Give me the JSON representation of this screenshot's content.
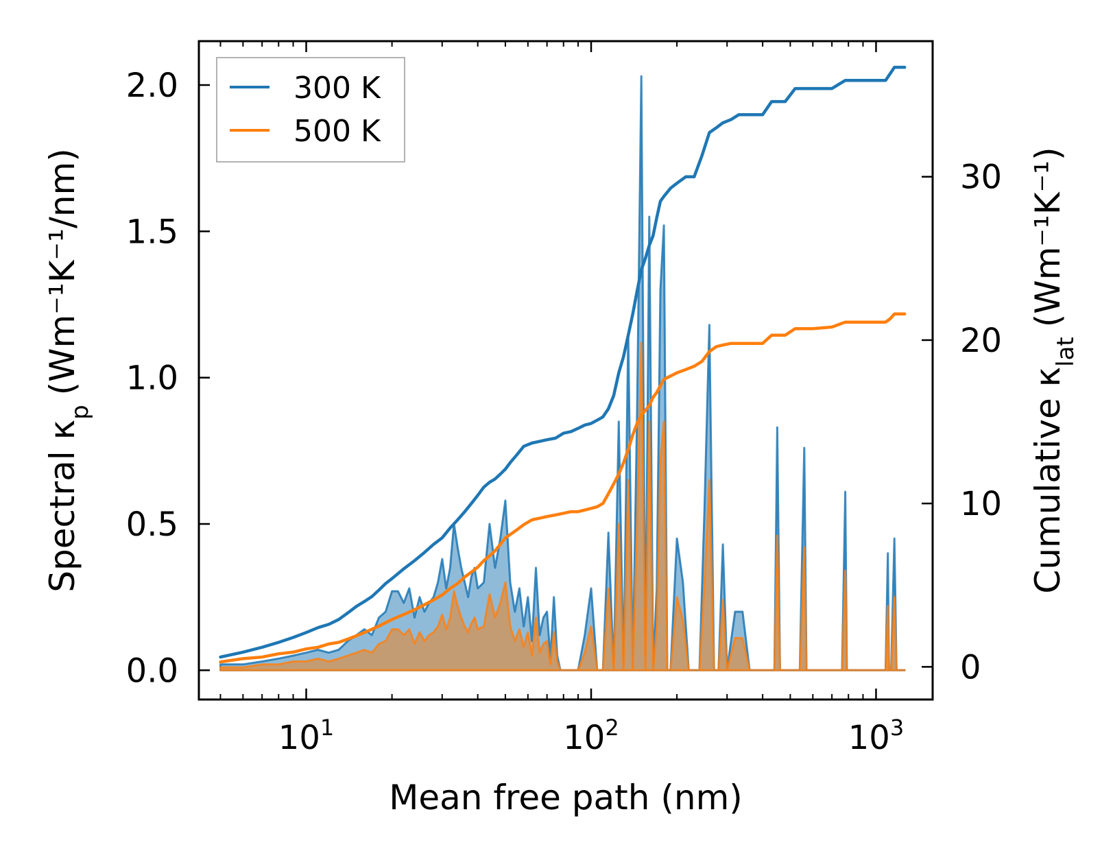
{
  "chart_data": {
    "type": "area",
    "xlabel": "Mean free path (nm)",
    "ylabel_left_main": "Spectral κ",
    "ylabel_left_sub": "p",
    "ylabel_left_units": "(Wm⁻¹K⁻¹/nm)",
    "ylabel_right_main": "Cumulative κ",
    "ylabel_right_sub": "lat",
    "ylabel_right_units": "(Wm⁻¹K⁻¹)",
    "x_scale": "log",
    "xlim": [
      4.2,
      1580
    ],
    "ylim_left": [
      -0.1,
      2.15
    ],
    "ylim_right": [
      -2.0,
      38.3
    ],
    "x_ticks": [
      {
        "base": "10",
        "exp": "1",
        "value": 10
      },
      {
        "base": "10",
        "exp": "2",
        "value": 100
      },
      {
        "base": "10",
        "exp": "3",
        "value": 1000
      }
    ],
    "y_ticks_left": [
      {
        "label": "0.0",
        "value": 0
      },
      {
        "label": "0.5",
        "value": 0.5
      },
      {
        "label": "1.0",
        "value": 1.0
      },
      {
        "label": "1.5",
        "value": 1.5
      },
      {
        "label": "2.0",
        "value": 2.0
      }
    ],
    "y_ticks_right": [
      {
        "label": "0",
        "value": 0
      },
      {
        "label": "10",
        "value": 10
      },
      {
        "label": "20",
        "value": 20
      },
      {
        "label": "30",
        "value": 30
      }
    ],
    "legend": {
      "placement": "top-left",
      "entries": [
        {
          "label": "300 K",
          "color": "#1f77b4"
        },
        {
          "label": "500 K",
          "color": "#ff7f0e"
        }
      ]
    },
    "series": [
      {
        "name": "300 K",
        "color": "#1f77b4",
        "spectral": {
          "x": [
            5,
            6,
            7,
            8,
            9,
            10,
            11,
            12,
            13,
            14,
            15,
            16,
            17,
            18,
            19,
            20,
            21,
            22,
            23,
            24,
            25,
            26,
            27,
            28,
            29,
            30,
            31,
            32,
            33,
            34,
            35,
            36,
            37,
            38,
            39,
            40,
            42,
            44,
            46,
            48,
            50,
            52,
            54,
            56,
            58,
            60,
            62,
            64,
            66,
            68,
            70,
            72,
            74,
            76,
            78,
            80,
            85,
            90,
            95,
            100,
            105,
            110,
            115,
            120,
            125,
            130,
            135,
            140,
            145,
            150,
            155,
            160,
            165,
            170,
            175,
            180,
            185,
            190,
            200,
            210,
            220,
            230,
            240,
            250,
            260,
            270,
            280,
            290,
            300,
            320,
            340,
            360,
            400,
            420,
            440,
            450,
            460,
            480,
            540,
            560,
            570,
            580,
            600,
            760,
            780,
            790,
            800,
            820,
            1080,
            1100,
            1110,
            1130,
            1160,
            1180,
            1200,
            1220,
            1260
          ],
          "y": [
            0.02,
            0.02,
            0.03,
            0.04,
            0.05,
            0.06,
            0.07,
            0.06,
            0.07,
            0.1,
            0.12,
            0.14,
            0.12,
            0.18,
            0.2,
            0.27,
            0.27,
            0.23,
            0.28,
            0.18,
            0.25,
            0.2,
            0.23,
            0.25,
            0.3,
            0.38,
            0.28,
            0.35,
            0.5,
            0.42,
            0.35,
            0.3,
            0.25,
            0.32,
            0.35,
            0.28,
            0.3,
            0.5,
            0.35,
            0.45,
            0.58,
            0.3,
            0.2,
            0.28,
            0.15,
            0.25,
            0.1,
            0.35,
            0.12,
            0.18,
            0.2,
            0.04,
            0.25,
            0.05,
            0.0,
            0.0,
            0.0,
            0.0,
            0.12,
            0.28,
            0.0,
            0.0,
            0.47,
            0.0,
            0.85,
            0.0,
            1.15,
            0.0,
            0.88,
            2.03,
            0.0,
            1.55,
            0.0,
            0.28,
            1.3,
            1.52,
            0.0,
            0.0,
            0.45,
            0.3,
            0.0,
            0.0,
            0.0,
            0.55,
            1.18,
            0.0,
            0.0,
            0.43,
            0.0,
            0.2,
            0.2,
            0.0,
            0.0,
            0.0,
            0.0,
            0.83,
            0.0,
            0.0,
            0.0,
            0.76,
            0.0,
            0.0,
            0.0,
            0.0,
            0.61,
            0.0,
            0.0,
            0.0,
            0.0,
            0.4,
            0.0,
            0.0,
            0.45,
            0.0,
            0.0,
            0.0,
            0.0
          ]
        },
        "cumulative": {
          "x": [
            5,
            6,
            7,
            8,
            9,
            10,
            11,
            12,
            13,
            14,
            15,
            16,
            17,
            18,
            19,
            20,
            22,
            24,
            26,
            28,
            30,
            32,
            34,
            36,
            38,
            40,
            42,
            44,
            46,
            48,
            50,
            52,
            55,
            58,
            62,
            66,
            70,
            75,
            80,
            85,
            90,
            95,
            100,
            105,
            110,
            115,
            120,
            125,
            130,
            135,
            140,
            145,
            150,
            155,
            160,
            165,
            170,
            175,
            180,
            190,
            200,
            215,
            230,
            245,
            260,
            275,
            290,
            310,
            330,
            360,
            400,
            430,
            450,
            480,
            520,
            560,
            600,
            700,
            780,
            820,
            1000,
            1080,
            1120,
            1160,
            1200,
            1260
          ],
          "y": [
            0.6,
            0.9,
            1.2,
            1.5,
            1.8,
            2.1,
            2.4,
            2.6,
            2.9,
            3.3,
            3.7,
            4.0,
            4.3,
            4.7,
            5.1,
            5.4,
            6.0,
            6.5,
            7.0,
            7.5,
            7.9,
            8.5,
            9.0,
            9.5,
            10.0,
            10.5,
            11.0,
            11.3,
            11.5,
            11.8,
            12.1,
            12.5,
            13.0,
            13.5,
            13.7,
            13.8,
            13.9,
            14.0,
            14.3,
            14.4,
            14.6,
            14.8,
            14.9,
            15.1,
            15.3,
            15.8,
            16.6,
            18.0,
            19.0,
            20.3,
            21.6,
            23.0,
            24.3,
            25.0,
            25.8,
            26.4,
            27.5,
            28.5,
            28.8,
            29.3,
            29.6,
            30.0,
            30.0,
            31.3,
            32.7,
            33.0,
            33.3,
            33.5,
            33.8,
            33.8,
            33.8,
            34.6,
            34.6,
            34.6,
            35.4,
            35.4,
            35.4,
            35.4,
            35.9,
            35.9,
            35.9,
            35.9,
            36.3,
            36.7,
            36.7,
            36.7
          ]
        }
      },
      {
        "name": "500 K",
        "color": "#ff7f0e",
        "spectral": {
          "x": [
            5,
            6,
            7,
            8,
            9,
            10,
            11,
            12,
            13,
            14,
            15,
            16,
            17,
            18,
            19,
            20,
            21,
            22,
            23,
            24,
            25,
            26,
            27,
            28,
            29,
            30,
            31,
            32,
            33,
            34,
            35,
            36,
            37,
            38,
            39,
            40,
            42,
            44,
            46,
            48,
            50,
            52,
            54,
            56,
            58,
            60,
            62,
            64,
            66,
            68,
            70,
            72,
            74,
            76,
            78,
            80,
            85,
            90,
            95,
            100,
            105,
            110,
            115,
            120,
            125,
            130,
            135,
            140,
            145,
            150,
            155,
            160,
            165,
            170,
            175,
            180,
            185,
            190,
            200,
            210,
            220,
            230,
            240,
            250,
            260,
            270,
            280,
            290,
            300,
            320,
            340,
            360,
            400,
            420,
            440,
            450,
            460,
            480,
            540,
            560,
            570,
            580,
            600,
            760,
            780,
            790,
            800,
            820,
            1080,
            1100,
            1110,
            1130,
            1160,
            1180,
            1200,
            1220,
            1260
          ],
          "y": [
            0.01,
            0.01,
            0.02,
            0.02,
            0.03,
            0.03,
            0.04,
            0.03,
            0.04,
            0.05,
            0.06,
            0.07,
            0.06,
            0.09,
            0.1,
            0.14,
            0.14,
            0.12,
            0.14,
            0.09,
            0.13,
            0.1,
            0.12,
            0.13,
            0.15,
            0.19,
            0.14,
            0.18,
            0.27,
            0.22,
            0.18,
            0.15,
            0.13,
            0.16,
            0.18,
            0.14,
            0.15,
            0.26,
            0.18,
            0.23,
            0.3,
            0.15,
            0.1,
            0.14,
            0.08,
            0.13,
            0.05,
            0.18,
            0.06,
            0.09,
            0.1,
            0.02,
            0.13,
            0.03,
            0.0,
            0.0,
            0.0,
            0.0,
            0.06,
            0.15,
            0.0,
            0.0,
            0.28,
            0.0,
            0.5,
            0.0,
            0.65,
            0.0,
            0.5,
            1.12,
            0.0,
            0.85,
            0.0,
            0.15,
            0.72,
            0.85,
            0.0,
            0.0,
            0.25,
            0.17,
            0.0,
            0.0,
            0.0,
            0.3,
            0.65,
            0.0,
            0.0,
            0.24,
            0.0,
            0.11,
            0.11,
            0.0,
            0.0,
            0.0,
            0.0,
            0.46,
            0.0,
            0.0,
            0.0,
            0.42,
            0.0,
            0.0,
            0.0,
            0.0,
            0.34,
            0.0,
            0.0,
            0.0,
            0.0,
            0.22,
            0.0,
            0.0,
            0.25,
            0.0,
            0.0,
            0.0,
            0.0
          ]
        },
        "cumulative": {
          "x": [
            5,
            6,
            7,
            8,
            9,
            10,
            11,
            12,
            13,
            14,
            15,
            16,
            17,
            18,
            19,
            20,
            22,
            24,
            26,
            28,
            30,
            32,
            34,
            36,
            38,
            40,
            42,
            44,
            46,
            48,
            50,
            52,
            55,
            58,
            62,
            66,
            70,
            75,
            80,
            85,
            90,
            95,
            100,
            105,
            110,
            115,
            120,
            125,
            130,
            135,
            140,
            145,
            150,
            155,
            160,
            165,
            170,
            175,
            180,
            190,
            200,
            215,
            230,
            245,
            260,
            275,
            290,
            310,
            330,
            360,
            400,
            430,
            450,
            480,
            520,
            560,
            600,
            700,
            780,
            820,
            1000,
            1080,
            1120,
            1160,
            1200,
            1260
          ],
          "y": [
            0.3,
            0.5,
            0.6,
            0.8,
            0.9,
            1.1,
            1.2,
            1.4,
            1.5,
            1.7,
            1.9,
            2.1,
            2.3,
            2.5,
            2.7,
            2.9,
            3.2,
            3.5,
            3.8,
            4.1,
            4.4,
            4.8,
            5.1,
            5.5,
            5.8,
            6.1,
            6.5,
            6.8,
            7.1,
            7.5,
            7.9,
            8.1,
            8.4,
            8.7,
            9.0,
            9.1,
            9.2,
            9.3,
            9.4,
            9.5,
            9.5,
            9.6,
            9.7,
            9.8,
            10.0,
            10.6,
            11.2,
            11.8,
            12.5,
            13.3,
            14.2,
            14.9,
            15.4,
            15.7,
            16.0,
            16.5,
            16.8,
            17.2,
            17.6,
            17.8,
            18.0,
            18.2,
            18.4,
            18.7,
            19.3,
            19.6,
            19.7,
            19.8,
            19.8,
            19.8,
            19.8,
            20.3,
            20.3,
            20.3,
            20.7,
            20.7,
            20.7,
            20.8,
            21.1,
            21.1,
            21.1,
            21.1,
            21.3,
            21.6,
            21.6,
            21.6
          ]
        }
      }
    ]
  }
}
